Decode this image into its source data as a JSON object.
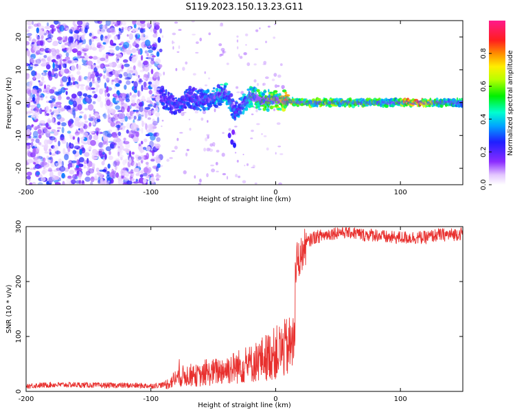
{
  "title": "S119.2023.150.13.23.G11",
  "chart_data": [
    {
      "type": "heatmap",
      "xlabel": "Height of straight line (km)",
      "ylabel": "Frequency (Hz)",
      "xlim": [
        -200,
        150
      ],
      "ylim": [
        -25,
        25
      ],
      "xticks": [
        "-200",
        "-100",
        "0",
        "100"
      ],
      "xtick_values": [
        -200,
        -100,
        0,
        100
      ],
      "yticks": [
        "-20",
        "-10",
        "0",
        "10",
        "20"
      ],
      "ytick_values": [
        -20,
        -10,
        0,
        10,
        20
      ],
      "colorbar": {
        "label": "Normalized spectral amplitude",
        "range": [
          0,
          1
        ],
        "ticks": [
          "0.0",
          "0.2",
          "0.4",
          "0.6",
          "0.8"
        ],
        "tick_values": [
          0,
          0.2,
          0.4,
          0.6,
          0.8
        ],
        "colormap": "rainbow (white-purple-blue-cyan-green-yellow-orange-red-magenta)"
      },
      "noise_region": {
        "x": [
          -200,
          -92
        ],
        "y": [
          -25,
          25
        ],
        "amplitude": [
          0.0,
          0.3
        ]
      },
      "signal_trace": [
        {
          "x": -90,
          "y": 1.5,
          "amp": 0.3
        },
        {
          "x": -80,
          "y": -1.0,
          "amp": 0.35
        },
        {
          "x": -70,
          "y": 2.0,
          "amp": 0.3
        },
        {
          "x": -60,
          "y": 0.5,
          "amp": 0.35
        },
        {
          "x": -50,
          "y": 1.5,
          "amp": 0.4
        },
        {
          "x": -40,
          "y": 3.0,
          "amp": 0.45
        },
        {
          "x": -32,
          "y": -3.0,
          "amp": 0.35
        },
        {
          "x": -20,
          "y": 2.0,
          "amp": 0.5
        },
        {
          "x": -10,
          "y": 0.5,
          "amp": 0.6
        },
        {
          "x": 0,
          "y": 1.0,
          "amp": 0.65
        },
        {
          "x": 10,
          "y": 0.5,
          "amp": 0.8
        },
        {
          "x": 20,
          "y": 0.0,
          "amp": 0.6
        },
        {
          "x": 40,
          "y": 0.0,
          "amp": 0.65
        },
        {
          "x": 60,
          "y": 0.0,
          "amp": 0.6
        },
        {
          "x": 80,
          "y": 0.0,
          "amp": 0.6
        },
        {
          "x": 95,
          "y": 0.0,
          "amp": 0.5
        },
        {
          "x": 105,
          "y": 0.0,
          "amp": 0.85
        },
        {
          "x": 115,
          "y": 0.0,
          "amp": 0.9
        },
        {
          "x": 130,
          "y": 0.0,
          "amp": 0.55
        },
        {
          "x": 150,
          "y": 0.0,
          "amp": 0.5
        }
      ]
    },
    {
      "type": "line",
      "xlabel": "Height of straight line (km)",
      "ylabel": "SNR (10 * v/v)",
      "xlim": [
        -200,
        150
      ],
      "ylim": [
        0,
        300
      ],
      "xticks": [
        "-200",
        "-100",
        "0",
        "100"
      ],
      "xtick_values": [
        -200,
        -100,
        0,
        100
      ],
      "yticks": [
        "0",
        "100",
        "200",
        "300"
      ],
      "ytick_values": [
        0,
        100,
        200,
        300
      ],
      "color": "#e8302e",
      "series": [
        {
          "x": [
            -200,
            -180,
            -160,
            -140,
            -120,
            -100,
            -90,
            -85,
            -80,
            -70,
            -60,
            -50,
            -40,
            -30,
            -20,
            -10,
            0,
            5,
            10,
            14,
            16,
            17,
            20,
            25,
            30,
            40,
            50,
            60,
            70,
            80,
            90,
            100,
            110,
            120,
            130,
            140,
            150
          ],
          "values": [
            10,
            12,
            12,
            11,
            11,
            10,
            12,
            15,
            25,
            30,
            28,
            35,
            40,
            45,
            50,
            60,
            70,
            75,
            80,
            85,
            200,
            240,
            245,
            270,
            280,
            285,
            290,
            290,
            285,
            285,
            280,
            280,
            280,
            280,
            285,
            285,
            288
          ]
        }
      ]
    }
  ]
}
